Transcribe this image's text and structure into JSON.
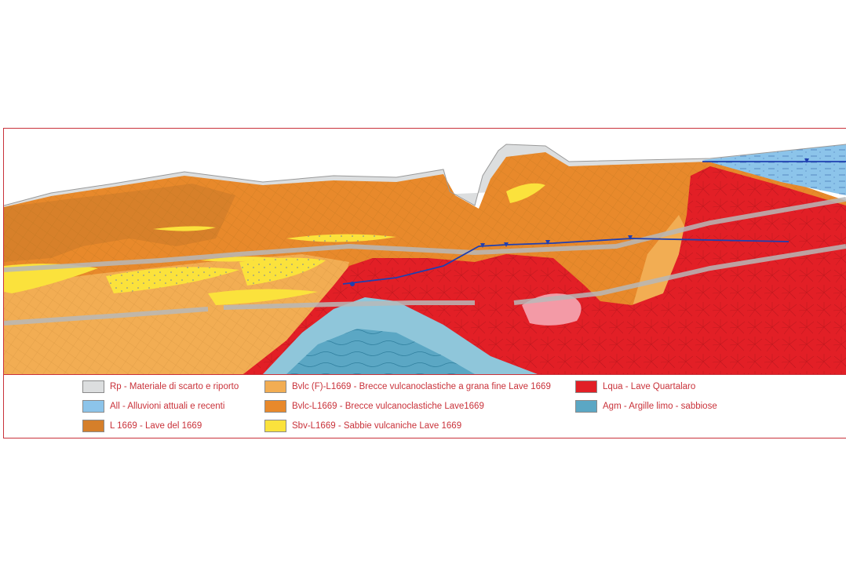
{
  "legend": {
    "items": [
      {
        "code": "Rp",
        "label": "Rp - Materiale di scarto e riporto",
        "color": "#dcdedf",
        "pattern": "plain-icon"
      },
      {
        "code": "All",
        "label": "All - Alluvioni attuali e recenti",
        "color": "#8cc4ea",
        "pattern": "dash-icon"
      },
      {
        "code": "L1669",
        "label": "L 1669 - Lave del 1669",
        "color": "#d57f2a",
        "pattern": "plain-icon"
      },
      {
        "code": "BvlcF",
        "label": "Bvlc (F)-L1669 - Brecce vulcanoclastiche a grana fine Lave 1669",
        "color": "#f2ad53",
        "pattern": "crosshatch-icon"
      },
      {
        "code": "Bvlc",
        "label": "Bvlc-L1669 - Brecce vulcanoclastiche Lave1669",
        "color": "#e8892b",
        "pattern": "crosshatch-icon"
      },
      {
        "code": "Sbv",
        "label": "Sbv-L1669 - Sabbie vulcaniche Lave 1669",
        "color": "#fbe23c",
        "pattern": "dots-icon"
      },
      {
        "code": "Lqua",
        "label": "Lqua - Lave Quartalaro",
        "color": "#e21f26",
        "pattern": "radial-icon"
      },
      {
        "code": "Agm",
        "label": "Agm - Argille limo - sabbiose",
        "color": "#5ba7c4",
        "pattern": "wave-icon"
      }
    ]
  },
  "colors": {
    "frame": "#c9323a",
    "water_table": "#1f3fb0",
    "pink_lens": "#f39aa6",
    "grey_band": "#b8b8b8"
  }
}
